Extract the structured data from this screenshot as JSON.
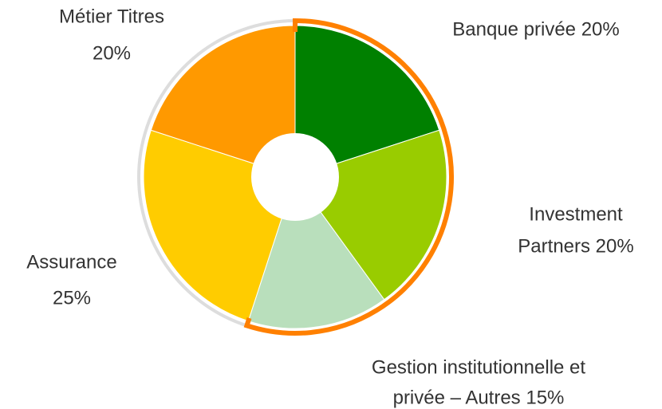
{
  "chart_data": {
    "type": "donut",
    "categories": [
      [
        "Banque privée 20%"
      ],
      [
        "Investment",
        "Partners 20%"
      ],
      [
        "Gestion institutionnelle et",
        "privée – Autres 15%"
      ],
      [
        "Assurance",
        "25%"
      ],
      [
        "Métier Titres",
        "20%"
      ]
    ],
    "values": [
      20,
      20,
      15,
      25,
      20
    ],
    "colors": [
      "#008000",
      "#99cc00",
      "#b9dfbc",
      "#ffcc00",
      "#ff9900"
    ]
  }
}
